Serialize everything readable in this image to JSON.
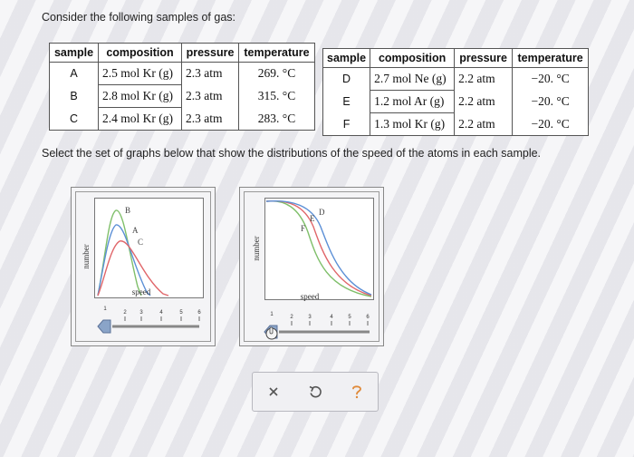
{
  "prompt": "Consider the following samples of gas:",
  "instruction": "Select the set of graphs below that show the distributions of the speed of the atoms in each sample.",
  "table_left": {
    "headers": [
      "sample",
      "composition",
      "pressure",
      "temperature"
    ],
    "rows": [
      {
        "sample": "A",
        "amount": "2.5 mol",
        "element": "Kr",
        "state": "(g)",
        "pressure": "2.3 atm",
        "temperature": "269. °C"
      },
      {
        "sample": "B",
        "amount": "2.8 mol",
        "element": "Kr",
        "state": "(g)",
        "pressure": "2.3 atm",
        "temperature": "315. °C"
      },
      {
        "sample": "C",
        "amount": "2.4 mol",
        "element": "Kr",
        "state": "(g)",
        "pressure": "2.3 atm",
        "temperature": "283. °C"
      }
    ]
  },
  "table_right": {
    "headers": [
      "sample",
      "composition",
      "pressure",
      "temperature"
    ],
    "rows": [
      {
        "sample": "D",
        "amount": "2.7 mol",
        "element": "Ne",
        "state": "(g)",
        "pressure": "2.2 atm",
        "temperature": "−20. °C"
      },
      {
        "sample": "E",
        "amount": "1.2 mol",
        "element": "Ar",
        "state": "(g)",
        "pressure": "2.2 atm",
        "temperature": "−20. °C"
      },
      {
        "sample": "F",
        "amount": "1.3 mol",
        "element": "Kr",
        "state": "(g)",
        "pressure": "2.2 atm",
        "temperature": "−20. °C"
      }
    ]
  },
  "graph_left": {
    "ylabel": "number",
    "xlabel": "speed",
    "curve_labels": [
      "B",
      "A",
      "C"
    ],
    "slider_ticks": [
      "1",
      "2",
      "3",
      "4",
      "5",
      "6"
    ],
    "slider_value": 1
  },
  "graph_right": {
    "ylabel": "number",
    "xlabel": "speed",
    "curve_labels": [
      "D",
      "E",
      "F"
    ],
    "slider_ticks": [
      "1",
      "2",
      "3",
      "4",
      "5",
      "6"
    ],
    "slider_value": 1
  },
  "toolbar": {
    "icons": [
      "close-icon",
      "undo-icon",
      "help-icon"
    ]
  },
  "colors": {
    "curve_green": "#7fbf6a",
    "curve_red": "#e0666a",
    "curve_blue": "#5b8fd6",
    "slider_thumb": "#8aa4c8"
  }
}
